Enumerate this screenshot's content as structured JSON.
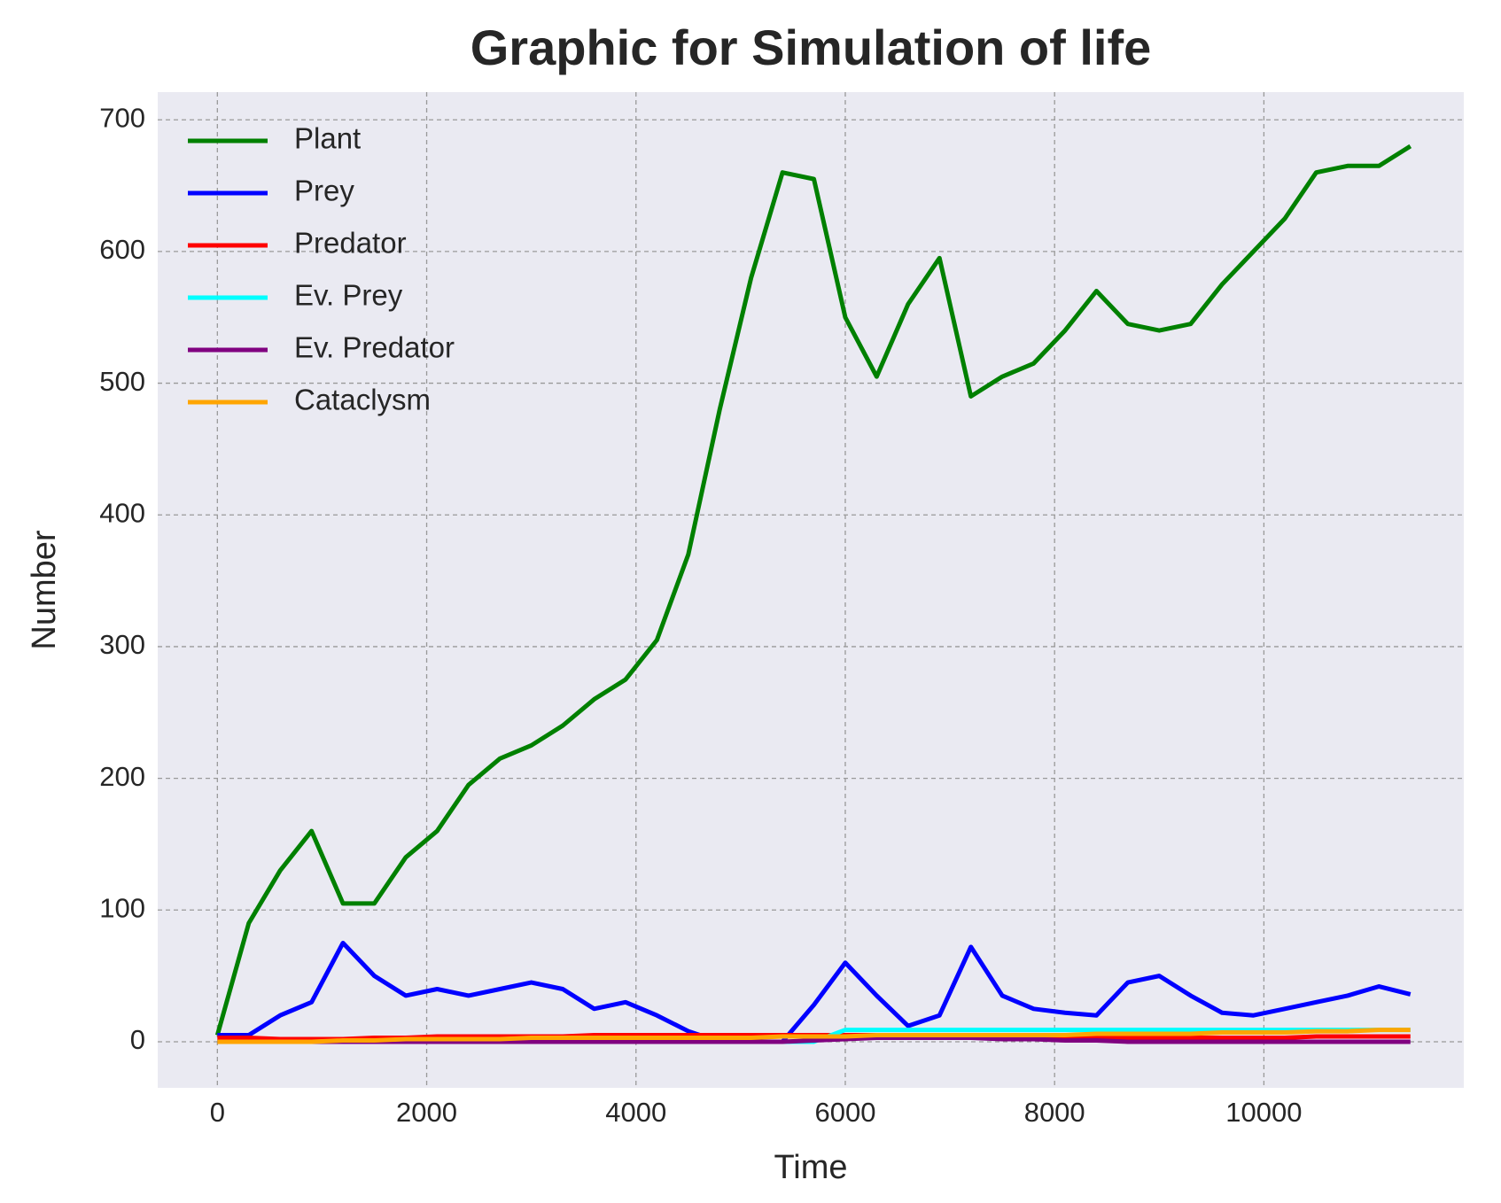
{
  "chart_data": {
    "type": "line",
    "title": "Graphic for Simulation of life",
    "x_label": "Time",
    "y_label": "Number",
    "x": [
      0,
      300,
      600,
      900,
      1200,
      1500,
      1800,
      2100,
      2400,
      2700,
      3000,
      3300,
      3600,
      3900,
      4200,
      4500,
      4800,
      5100,
      5400,
      5700,
      6000,
      6300,
      6600,
      6900,
      7200,
      7500,
      7800,
      8100,
      8400,
      8700,
      9000,
      9300,
      9600,
      9900,
      10200,
      10500,
      10800,
      11100,
      11400
    ],
    "series": [
      {
        "name": "Plant",
        "color": "#008000",
        "values": [
          5,
          90,
          130,
          160,
          105,
          105,
          140,
          160,
          195,
          215,
          225,
          240,
          260,
          275,
          305,
          370,
          480,
          580,
          660,
          655,
          550,
          505,
          560,
          595,
          490,
          505,
          515,
          540,
          570,
          545,
          540,
          545,
          575,
          600,
          625,
          660,
          665,
          665,
          680
        ]
      },
      {
        "name": "Prey",
        "color": "#0000ff",
        "values": [
          5,
          5,
          20,
          30,
          75,
          50,
          35,
          40,
          35,
          40,
          45,
          40,
          25,
          30,
          20,
          8,
          0,
          0,
          0,
          28,
          60,
          35,
          12,
          20,
          72,
          35,
          25,
          22,
          20,
          45,
          50,
          35,
          22,
          20,
          25,
          30,
          35,
          42,
          36
        ]
      },
      {
        "name": "Predator",
        "color": "#ff0000",
        "values": [
          3,
          3,
          2,
          2,
          2,
          3,
          3,
          4,
          4,
          4,
          4,
          4,
          5,
          5,
          5,
          5,
          5,
          5,
          5,
          5,
          5,
          5,
          5,
          5,
          3,
          3,
          3,
          3,
          3,
          3,
          3,
          3,
          3,
          3,
          3,
          4,
          4,
          4,
          4
        ]
      },
      {
        "name": "Ev. Prey",
        "color": "#00ffff",
        "values": [
          0,
          0,
          0,
          0,
          0,
          0,
          0,
          0,
          0,
          0,
          0,
          0,
          0,
          0,
          0,
          0,
          0,
          0,
          0,
          0,
          9,
          9,
          9,
          9,
          9,
          9,
          9,
          9,
          9,
          9,
          9,
          9,
          9,
          9,
          9,
          9,
          9,
          9,
          9
        ]
      },
      {
        "name": "Ev. Predator",
        "color": "#800080",
        "values": [
          0,
          0,
          0,
          0,
          0,
          0,
          0,
          0,
          0,
          0,
          0,
          0,
          0,
          0,
          0,
          0,
          0,
          0,
          0,
          1,
          2,
          3,
          3,
          3,
          3,
          2,
          2,
          1,
          1,
          0,
          0,
          0,
          0,
          0,
          0,
          0,
          0,
          0,
          0
        ]
      },
      {
        "name": "Cataclysm",
        "color": "#ffa500",
        "values": [
          0,
          0,
          0,
          0,
          1,
          1,
          2,
          2,
          2,
          2,
          3,
          3,
          3,
          3,
          3,
          3,
          3,
          3,
          4,
          4,
          4,
          5,
          5,
          5,
          5,
          5,
          5,
          5,
          6,
          6,
          6,
          6,
          7,
          7,
          7,
          8,
          8,
          9,
          9
        ]
      }
    ],
    "xlim": [
      -570,
      11910
    ],
    "ylim": [
      -35,
      721
    ],
    "xticks": [
      0,
      2000,
      4000,
      6000,
      8000,
      10000
    ],
    "yticks": [
      0,
      100,
      200,
      300,
      400,
      500,
      600,
      700
    ],
    "grid": true,
    "legend": "upper left"
  }
}
